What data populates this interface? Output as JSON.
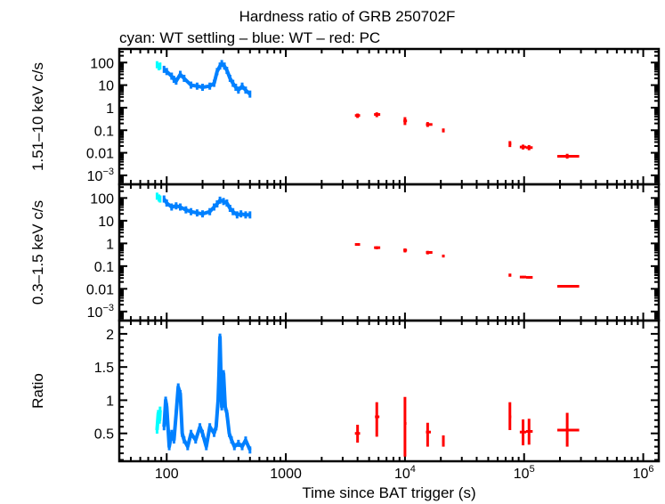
{
  "chart_data": {
    "type": "scatter",
    "title": "Hardness ratio of GRB 250702F",
    "subtitle": "cyan: WT settling – blue: WT – red: PC",
    "xlabel": "Time since BAT trigger (s)",
    "xscale": "log",
    "xlim": [
      40,
      1350000
    ],
    "x_ticks": [
      {
        "t": "100",
        "s": ""
      },
      {
        "t": "1000",
        "s": ""
      },
      {
        "t": "10",
        "s": "4"
      },
      {
        "t": "10",
        "s": "5"
      },
      {
        "t": "10",
        "s": "6"
      }
    ],
    "colors": {
      "wt_settling": "#00ffff",
      "wt": "#0080ff",
      "pc": "#ff0000"
    },
    "panels": [
      {
        "name": "hard",
        "ylabel": "1.51–10 keV c/s",
        "yscale": "log",
        "ylim": [
          0.0004,
          400
        ],
        "y_ticks": [
          {
            "v": 100,
            "t": "100",
            "s": ""
          },
          {
            "v": 10,
            "t": "10",
            "s": ""
          },
          {
            "v": 1,
            "t": "1",
            "s": ""
          },
          {
            "v": 0.1,
            "t": "0.1",
            "s": ""
          },
          {
            "v": 0.01,
            "t": "0.01",
            "s": ""
          },
          {
            "v": 0.001,
            "t": "10",
            "s": "−3"
          }
        ],
        "wt_settling": [
          [
            83,
            80
          ],
          [
            86,
            65
          ],
          [
            88,
            70
          ]
        ],
        "wt": [
          [
            95,
            50
          ],
          [
            100,
            40
          ],
          [
            110,
            25
          ],
          [
            115,
            18
          ],
          [
            120,
            15
          ],
          [
            130,
            30
          ],
          [
            140,
            20
          ],
          [
            160,
            10
          ],
          [
            180,
            9
          ],
          [
            200,
            8
          ],
          [
            230,
            9
          ],
          [
            250,
            12
          ],
          [
            265,
            40
          ],
          [
            280,
            70
          ],
          [
            290,
            90
          ],
          [
            305,
            70
          ],
          [
            320,
            45
          ],
          [
            340,
            20
          ],
          [
            360,
            12
          ],
          [
            380,
            8
          ],
          [
            400,
            6
          ],
          [
            430,
            9
          ],
          [
            460,
            6
          ],
          [
            500,
            4
          ]
        ],
        "pc": [
          {
            "x": 4000,
            "xe": [
              3800,
              4200
            ],
            "y": 0.45,
            "ye": [
              0.35,
              0.55
            ]
          },
          {
            "x": 5800,
            "xe": [
              5500,
              6200
            ],
            "y": 0.5,
            "ye": [
              0.38,
              0.62
            ]
          },
          {
            "x": 10000,
            "xe": [
              9700,
              10400
            ],
            "y": 0.26,
            "ye": [
              0.17,
              0.38
            ]
          },
          {
            "x": 15500,
            "xe": [
              15000,
              17000
            ],
            "y": 0.18,
            "ye": [
              0.14,
              0.23
            ]
          },
          {
            "x": 21000,
            "xe": [
              20500,
              21500
            ],
            "y": 0.1,
            "ye": [
              0.08,
              0.12
            ]
          },
          {
            "x": 76000,
            "xe": [
              75000,
              78000
            ],
            "y": 0.025,
            "ye": [
              0.018,
              0.033
            ]
          },
          {
            "x": 98000,
            "xe": [
              92000,
              104000
            ],
            "y": 0.018,
            "ye": [
              0.014,
              0.023
            ]
          },
          {
            "x": 110000,
            "xe": [
              104000,
              118000
            ],
            "y": 0.017,
            "ye": [
              0.013,
              0.022
            ]
          },
          {
            "x": 230000,
            "xe": [
              190000,
              290000
            ],
            "y": 0.007,
            "ye": [
              0.0055,
              0.009
            ]
          }
        ]
      },
      {
        "name": "soft",
        "ylabel": "0.3–1.5 keV c/s",
        "yscale": "log",
        "ylim": [
          0.0004,
          400
        ],
        "y_ticks": [
          {
            "v": 100,
            "t": "100",
            "s": ""
          },
          {
            "v": 10,
            "t": "10",
            "s": ""
          },
          {
            "v": 1,
            "t": "1",
            "s": ""
          },
          {
            "v": 0.1,
            "t": "0.1",
            "s": ""
          },
          {
            "v": 0.01,
            "t": "0.01",
            "s": ""
          },
          {
            "v": 0.001,
            "t": "10",
            "s": "−3"
          }
        ],
        "wt_settling": [
          [
            83,
            120
          ],
          [
            86,
            100
          ],
          [
            88,
            90
          ]
        ],
        "wt": [
          [
            95,
            90
          ],
          [
            100,
            60
          ],
          [
            110,
            40
          ],
          [
            120,
            45
          ],
          [
            130,
            40
          ],
          [
            145,
            30
          ],
          [
            160,
            25
          ],
          [
            180,
            22
          ],
          [
            200,
            20
          ],
          [
            230,
            25
          ],
          [
            250,
            40
          ],
          [
            265,
            55
          ],
          [
            280,
            80
          ],
          [
            300,
            70
          ],
          [
            320,
            60
          ],
          [
            340,
            35
          ],
          [
            360,
            25
          ],
          [
            390,
            18
          ],
          [
            420,
            20
          ],
          [
            460,
            18
          ],
          [
            500,
            18
          ]
        ],
        "pc": [
          {
            "x": 4000,
            "xe": [
              3800,
              4200
            ],
            "y": 0.9,
            "ye": [
              0.8,
              1.0
            ]
          },
          {
            "x": 5800,
            "xe": [
              5500,
              6200
            ],
            "y": 0.65,
            "ye": [
              0.55,
              0.75
            ]
          },
          {
            "x": 10000,
            "xe": [
              9700,
              10400
            ],
            "y": 0.5,
            "ye": [
              0.4,
              0.6
            ]
          },
          {
            "x": 15500,
            "xe": [
              15000,
              17000
            ],
            "y": 0.4,
            "ye": [
              0.33,
              0.47
            ]
          },
          {
            "x": 21000,
            "xe": [
              20500,
              21500
            ],
            "y": 0.28,
            "ye": [
              0.24,
              0.32
            ]
          },
          {
            "x": 76000,
            "xe": [
              75000,
              78000
            ],
            "y": 0.04,
            "ye": [
              0.034,
              0.047
            ]
          },
          {
            "x": 98000,
            "xe": [
              92000,
              104000
            ],
            "y": 0.033,
            "ye": [
              0.029,
              0.037
            ]
          },
          {
            "x": 110000,
            "xe": [
              104000,
              118000
            ],
            "y": 0.032,
            "ye": [
              0.028,
              0.036
            ]
          },
          {
            "x": 230000,
            "xe": [
              190000,
              290000
            ],
            "y": 0.013,
            "ye": [
              0.012,
              0.014
            ]
          }
        ]
      },
      {
        "name": "ratio",
        "ylabel": "Ratio",
        "yscale": "linear",
        "ylim": [
          0.08,
          2.2
        ],
        "y_ticks": [
          {
            "v": 2,
            "t": "2",
            "s": ""
          },
          {
            "v": 1.5,
            "t": "1.5",
            "s": ""
          },
          {
            "v": 1,
            "t": "1",
            "s": ""
          },
          {
            "v": 0.5,
            "t": "0.5",
            "s": ""
          }
        ],
        "wt_settling": [
          [
            83,
            0.55
          ],
          [
            85,
            0.8
          ],
          [
            87,
            0.7
          ],
          [
            88,
            0.85
          ]
        ],
        "wt": [
          [
            95,
            0.6
          ],
          [
            98,
            1.0
          ],
          [
            100,
            0.9
          ],
          [
            105,
            0.3
          ],
          [
            110,
            0.5
          ],
          [
            115,
            0.4
          ],
          [
            120,
            0.8
          ],
          [
            125,
            1.2
          ],
          [
            130,
            1.1
          ],
          [
            135,
            0.5
          ],
          [
            140,
            0.4
          ],
          [
            150,
            0.3
          ],
          [
            160,
            0.5
          ],
          [
            175,
            0.4
          ],
          [
            190,
            0.6
          ],
          [
            200,
            0.5
          ],
          [
            215,
            0.3
          ],
          [
            230,
            0.6
          ],
          [
            250,
            0.5
          ],
          [
            260,
            0.6
          ],
          [
            270,
            1.0
          ],
          [
            275,
            1.4
          ],
          [
            280,
            1.95
          ],
          [
            290,
            0.9
          ],
          [
            300,
            1.4
          ],
          [
            310,
            0.9
          ],
          [
            320,
            0.8
          ],
          [
            335,
            0.5
          ],
          [
            350,
            0.4
          ],
          [
            370,
            0.3
          ],
          [
            400,
            0.35
          ],
          [
            430,
            0.3
          ],
          [
            460,
            0.4
          ],
          [
            500,
            0.25
          ]
        ],
        "pc": [
          {
            "x": 4000,
            "xe": [
              3800,
              4200
            ],
            "y": 0.5,
            "ye": [
              0.36,
              0.63
            ]
          },
          {
            "x": 5800,
            "xe": [
              5600,
              6100
            ],
            "y": 0.75,
            "ye": [
              0.45,
              0.97
            ]
          },
          {
            "x": 10000,
            "xe": [
              9800,
              10300
            ],
            "y": 0.65,
            "ye": [
              0.15,
              1.05
            ]
          },
          {
            "x": 15500,
            "xe": [
              15000,
              16500
            ],
            "y": 0.52,
            "ye": [
              0.3,
              0.66
            ]
          },
          {
            "x": 21000,
            "xe": [
              20500,
              21500
            ],
            "y": 0.38,
            "ye": [
              0.3,
              0.47
            ]
          },
          {
            "x": 76000,
            "xe": [
              75000,
              78000
            ],
            "y": 0.75,
            "ye": [
              0.55,
              0.97
            ]
          },
          {
            "x": 98000,
            "xe": [
              92000,
              104000
            ],
            "y": 0.52,
            "ye": [
              0.32,
              0.71
            ]
          },
          {
            "x": 110000,
            "xe": [
              104000,
              118000
            ],
            "y": 0.53,
            "ye": [
              0.33,
              0.72
            ]
          },
          {
            "x": 230000,
            "xe": [
              190000,
              290000
            ],
            "y": 0.55,
            "ye": [
              0.3,
              0.81
            ]
          }
        ]
      }
    ]
  }
}
